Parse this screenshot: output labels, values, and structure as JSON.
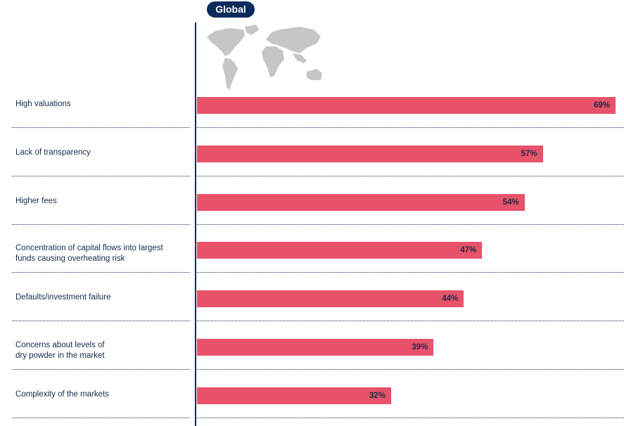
{
  "header": {
    "region_label": "Global"
  },
  "chart_data": {
    "type": "bar",
    "orientation": "horizontal",
    "categories": [
      "High valuations",
      "Lack of transparency",
      "Higher fees",
      "Concentration of capital flows into largest funds causing overheating risk",
      "Defaults/investment failure",
      "Concerns about levels of dry powder in the market",
      "Complexity of the markets"
    ],
    "category_lines": [
      [
        "High valuations"
      ],
      [
        "Lack of transparency"
      ],
      [
        "Higher fees"
      ],
      [
        "Concentration of capital flows into largest",
        "funds causing overheating risk"
      ],
      [
        "Defaults/investment failure"
      ],
      [
        "Concerns about levels of",
        "dry powder in the market"
      ],
      [
        "Complexity of the markets"
      ]
    ],
    "values": [
      69,
      57,
      54,
      47,
      44,
      39,
      32
    ],
    "data_labels": [
      "69%",
      "57%",
      "54%",
      "47%",
      "44%",
      "39%",
      "32%"
    ],
    "xlim": [
      0,
      69
    ],
    "grid": false,
    "bar_color": "#e8536a",
    "axis_color": "#0d2a5c"
  }
}
